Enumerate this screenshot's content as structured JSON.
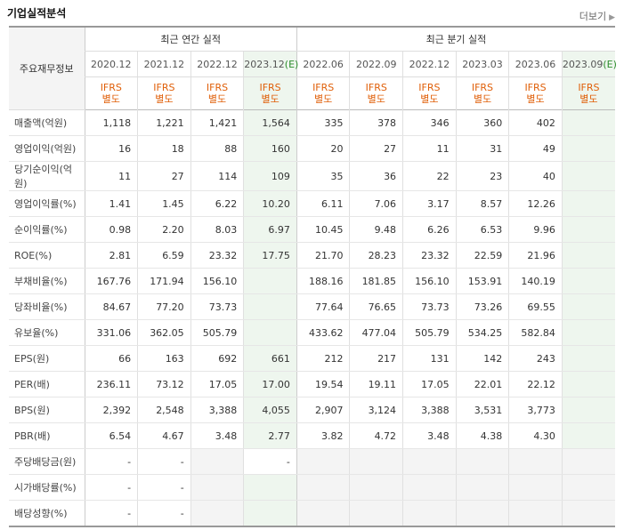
{
  "section": {
    "title": "기업실적분석",
    "more_label": "더보기",
    "more_icon": "chevron-right-icon"
  },
  "header": {
    "corner_label": "주요재무정보",
    "annual_group": "최근 연간 실적",
    "quarter_group": "최근 분기 실적",
    "annual_periods": [
      "2020.12",
      "2021.12",
      "2022.12",
      "2023.12"
    ],
    "annual_est_mark": "(E)",
    "quarter_periods": [
      "2022.06",
      "2022.09",
      "2022.12",
      "2023.03",
      "2023.06",
      "2023.09"
    ],
    "quarter_est_mark": "(E)",
    "basis_top": "IFRS",
    "basis_bottom": "별도"
  },
  "rows": [
    {
      "label": "매출액(억원)",
      "annual": [
        "1,118",
        "1,221",
        "1,421",
        "1,564"
      ],
      "quarter": [
        "335",
        "378",
        "346",
        "360",
        "402",
        ""
      ]
    },
    {
      "label": "영업이익(억원)",
      "annual": [
        "16",
        "18",
        "88",
        "160"
      ],
      "quarter": [
        "20",
        "27",
        "11",
        "31",
        "49",
        ""
      ]
    },
    {
      "label": "당기순이익(억원)",
      "annual": [
        "11",
        "27",
        "114",
        "109"
      ],
      "quarter": [
        "35",
        "36",
        "22",
        "23",
        "40",
        ""
      ]
    },
    {
      "label": "영업이익률(%)",
      "annual": [
        "1.41",
        "1.45",
        "6.22",
        "10.20"
      ],
      "quarter": [
        "6.11",
        "7.06",
        "3.17",
        "8.57",
        "12.26",
        ""
      ]
    },
    {
      "label": "순이익률(%)",
      "annual": [
        "0.98",
        "2.20",
        "8.03",
        "6.97"
      ],
      "quarter": [
        "10.45",
        "9.48",
        "6.26",
        "6.53",
        "9.96",
        ""
      ]
    },
    {
      "label": "ROE(%)",
      "annual": [
        "2.81",
        "6.59",
        "23.32",
        "17.75"
      ],
      "quarter": [
        "21.70",
        "28.23",
        "23.32",
        "22.59",
        "21.96",
        ""
      ]
    },
    {
      "label": "부채비율(%)",
      "annual": [
        "167.76",
        "171.94",
        "156.10",
        ""
      ],
      "quarter": [
        "188.16",
        "181.85",
        "156.10",
        "153.91",
        "140.19",
        ""
      ]
    },
    {
      "label": "당좌비율(%)",
      "annual": [
        "84.67",
        "77.20",
        "73.73",
        ""
      ],
      "quarter": [
        "77.64",
        "76.65",
        "73.73",
        "73.26",
        "69.55",
        ""
      ]
    },
    {
      "label": "유보율(%)",
      "annual": [
        "331.06",
        "362.05",
        "505.79",
        ""
      ],
      "quarter": [
        "433.62",
        "477.04",
        "505.79",
        "534.25",
        "582.84",
        ""
      ]
    },
    {
      "label": "EPS(원)",
      "annual": [
        "66",
        "163",
        "692",
        "661"
      ],
      "quarter": [
        "212",
        "217",
        "131",
        "142",
        "243",
        ""
      ]
    },
    {
      "label": "PER(배)",
      "annual": [
        "236.11",
        "73.12",
        "17.05",
        "17.00"
      ],
      "quarter": [
        "19.54",
        "19.11",
        "17.05",
        "22.01",
        "22.12",
        ""
      ]
    },
    {
      "label": "BPS(원)",
      "annual": [
        "2,392",
        "2,548",
        "3,388",
        "4,055"
      ],
      "quarter": [
        "2,907",
        "3,124",
        "3,388",
        "3,531",
        "3,773",
        ""
      ]
    },
    {
      "label": "PBR(배)",
      "annual": [
        "6.54",
        "4.67",
        "3.48",
        "2.77"
      ],
      "quarter": [
        "3.82",
        "4.72",
        "3.48",
        "4.38",
        "4.30",
        ""
      ]
    },
    {
      "label": "주당배당금(원)",
      "annual": [
        "-",
        "-",
        "",
        "-"
      ],
      "quarter": [
        "",
        "",
        "",
        "",
        "",
        ""
      ]
    },
    {
      "label": "시가배당률(%)",
      "annual": [
        "-",
        "-",
        "",
        ""
      ],
      "quarter": [
        "",
        "",
        "",
        "",
        "",
        ""
      ]
    },
    {
      "label": "배당성향(%)",
      "annual": [
        "-",
        "-",
        "",
        ""
      ],
      "quarter": [
        "",
        "",
        "",
        "",
        "",
        ""
      ]
    }
  ],
  "colors": {
    "basis_text": "#e0600a",
    "estimate_bg": "#eef6ee",
    "estimate_mark": "#2c8c2c",
    "empty_bg": "#f4f4f4"
  }
}
